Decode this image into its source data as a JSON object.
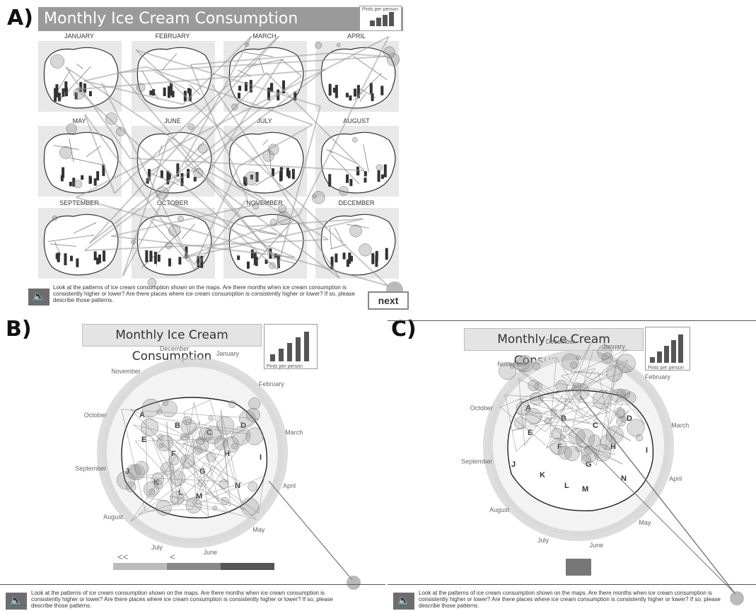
{
  "panels": {
    "a": {
      "label": "A)",
      "title": "Monthly Ice Cream Consumption",
      "legend_label": "Pints per person",
      "months": [
        "JANUARY",
        "FEBRUARY",
        "MARCH",
        "APRIL",
        "MAY",
        "JUNE",
        "JULY",
        "AUGUST",
        "SEPTEMBER",
        "OCTOBER",
        "NOVEMBER",
        "DECEMBER"
      ],
      "instruction": "Look at the patterns of ice cream consumption shown on the maps. Are there months when ice cream consumption is consistently higher or lower? Are there places where ice cream consumption is consistently higher or lower? If so, please describe those patterns.",
      "next_label": "next"
    },
    "b": {
      "label": "B)",
      "title": "Monthly Ice Cream Consumption",
      "legend_label": "Pints per person",
      "months": [
        "January",
        "February",
        "March",
        "April",
        "May",
        "June",
        "July",
        "August",
        "September",
        "October",
        "November",
        "December"
      ],
      "regions": [
        "A",
        "B",
        "C",
        "D",
        "E",
        "F",
        "G",
        "H",
        "I",
        "J",
        "K",
        "L",
        "M",
        "N"
      ],
      "nav_prev_fast": "<<",
      "nav_prev": "<",
      "instruction": "Look at the patterns of ice cream consumption shown on the maps. Are there months when ice cream consumption is consistently higher or lower? Are there places where ice cream consumption is consistently higher or lower? If so, please describe those patterns."
    },
    "c": {
      "label": "C)",
      "title": "Monthly Ice Cream Consumption",
      "legend_label": "Pints per person",
      "months": [
        "January",
        "February",
        "March",
        "April",
        "May",
        "June",
        "July",
        "August",
        "September",
        "October",
        "November",
        "December"
      ],
      "regions": [
        "A",
        "B",
        "C",
        "D",
        "E",
        "F",
        "G",
        "H",
        "I",
        "J",
        "K",
        "L",
        "M",
        "N"
      ],
      "instruction": "Look at the patterns of ice cream consumption shown on the maps. Are there months when ice cream consumption is consistently higher or lower? Are there places where ice cream consumption is consistently higher or lower? If so, please describe those patterns."
    }
  },
  "icons": {
    "speaker": "speaker-icon"
  },
  "colors": {
    "title_bar": "#9a9a9a",
    "fixation": "#8c8c8c",
    "bar": "#555555"
  }
}
